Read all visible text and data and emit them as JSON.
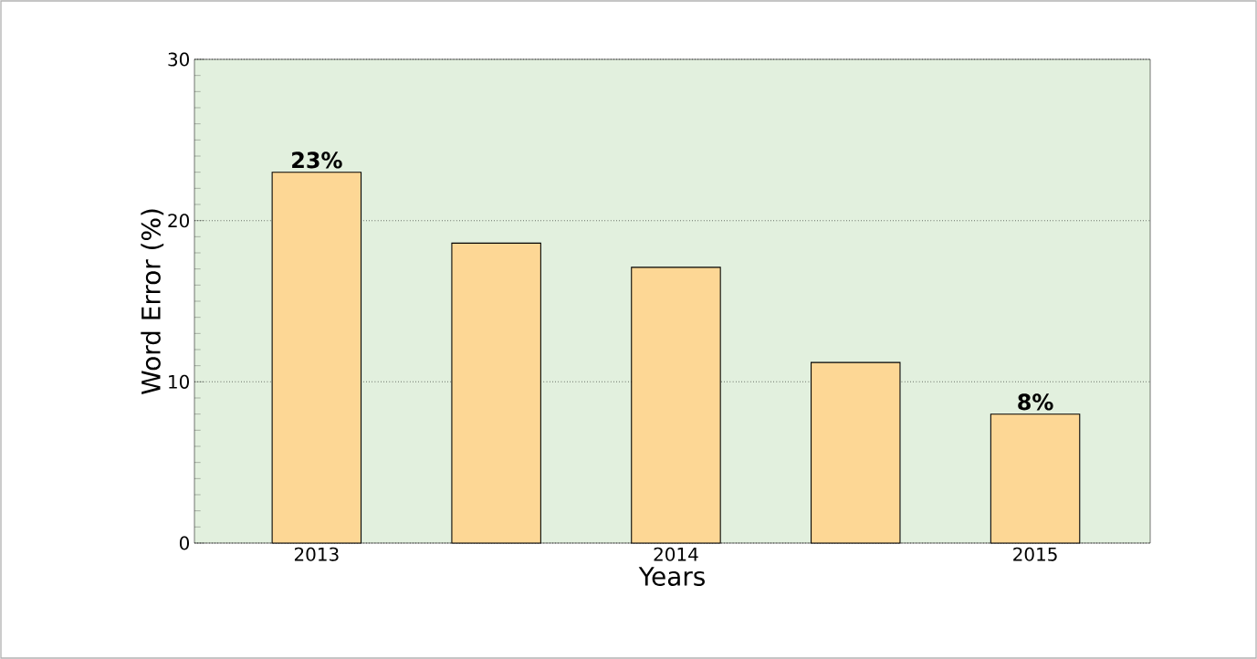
{
  "chart_data": {
    "type": "bar",
    "xlabel": "Years",
    "ylabel": "Word Error (%)",
    "categories": [
      "2013",
      null,
      "2014",
      null,
      "2015"
    ],
    "values": [
      23,
      18.6,
      17.1,
      11.2,
      8
    ],
    "value_labels": [
      "23%",
      null,
      null,
      null,
      "8%"
    ],
    "color": "#fdd795",
    "ylim": [
      0,
      30
    ],
    "yticks": [
      0,
      10,
      20,
      30
    ],
    "grid": "y"
  }
}
